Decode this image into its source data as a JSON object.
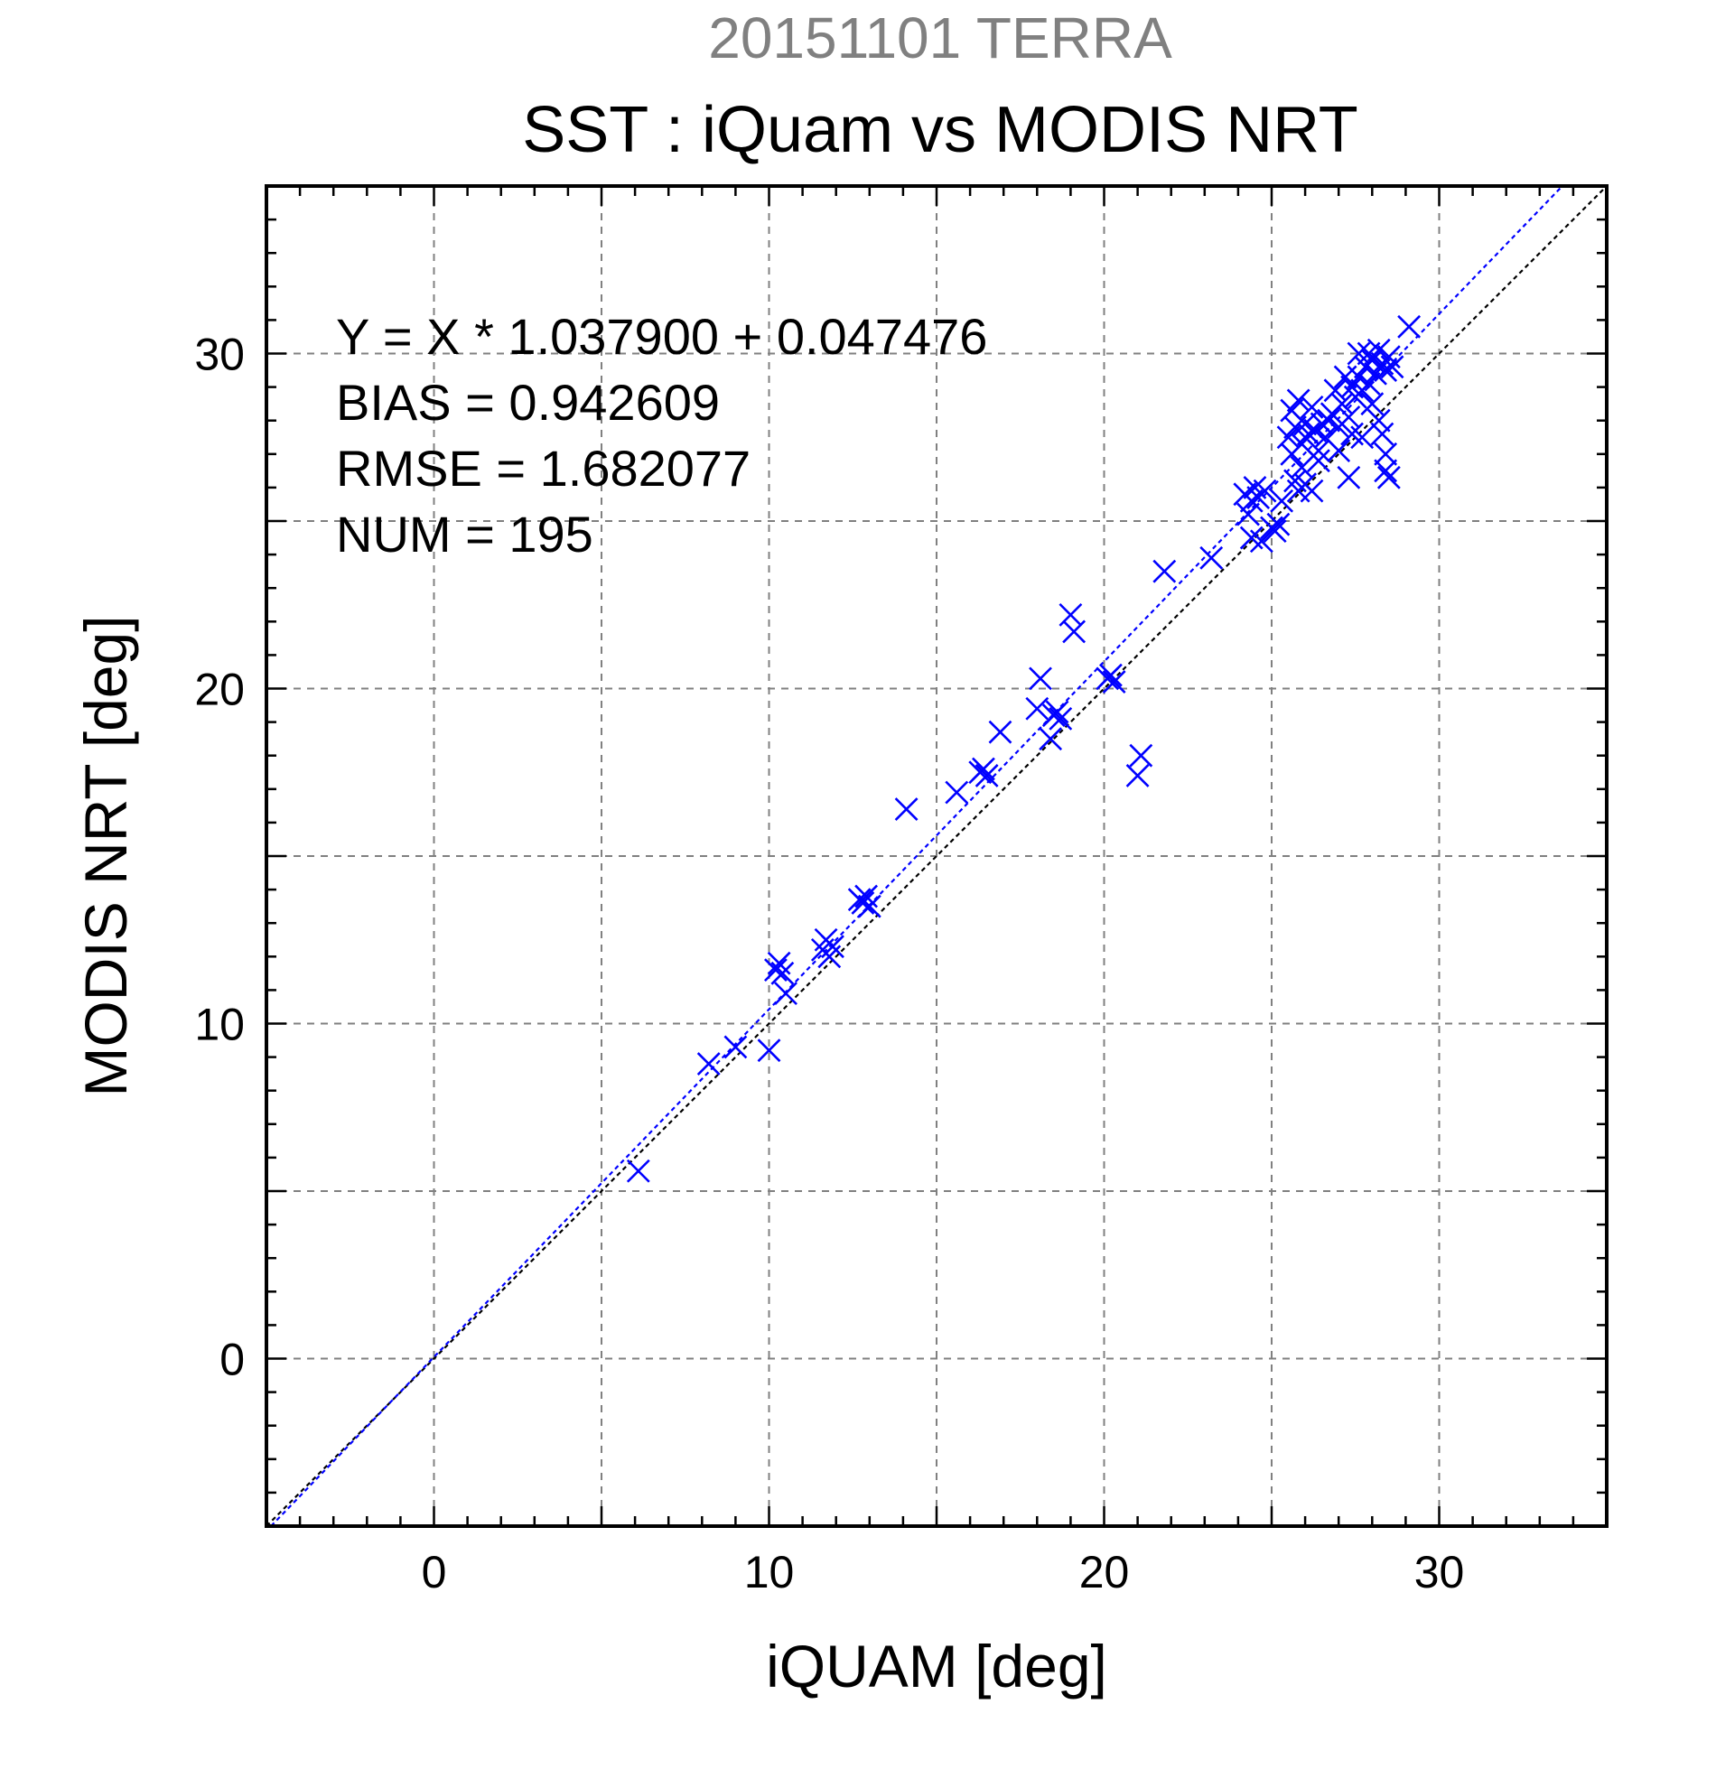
{
  "chart_data": {
    "type": "scatter",
    "suptitle": "20151101 TERRA",
    "title": "SST : iQuam vs MODIS NRT",
    "xlabel": "iQUAM [deg]",
    "ylabel": "MODIS NRT [deg]",
    "xlim": [
      -5,
      35
    ],
    "ylim": [
      -5,
      35
    ],
    "xticks": [
      0,
      10,
      20,
      30
    ],
    "yticks": [
      0,
      10,
      20,
      30
    ],
    "xtick_labels": [
      "0",
      "10",
      "20",
      "30"
    ],
    "ytick_labels": [
      "0",
      "10",
      "20",
      "30"
    ],
    "grid": true,
    "grid_step": 5,
    "minor_tick_step": 1,
    "marker": "x",
    "colors": {
      "points": "#0000ff",
      "fit_line": "#0000ff",
      "identity_line": "#000000"
    },
    "annotations": [
      "Y = X * 1.037900 + 0.047476",
      "BIAS = 0.942609",
      "RMSE = 1.682077",
      "NUM = 195"
    ],
    "fit": {
      "slope": 1.0379,
      "intercept": 0.047476
    },
    "identity_line": {
      "slope": 1,
      "intercept": 0
    },
    "points": [
      [
        6.1,
        5.6
      ],
      [
        8.2,
        8.8
      ],
      [
        9.0,
        9.3
      ],
      [
        10.0,
        9.2
      ],
      [
        10.2,
        11.6
      ],
      [
        10.3,
        11.8
      ],
      [
        10.4,
        11.5
      ],
      [
        10.5,
        10.9
      ],
      [
        11.6,
        12.2
      ],
      [
        11.7,
        12.5
      ],
      [
        11.8,
        12.0
      ],
      [
        11.9,
        12.3
      ],
      [
        12.7,
        13.7
      ],
      [
        12.8,
        13.6
      ],
      [
        12.9,
        13.8
      ],
      [
        13.0,
        13.5
      ],
      [
        14.1,
        16.4
      ],
      [
        15.6,
        16.9
      ],
      [
        16.3,
        17.5
      ],
      [
        16.4,
        17.6
      ],
      [
        16.5,
        17.4
      ],
      [
        16.9,
        18.7
      ],
      [
        18.0,
        19.4
      ],
      [
        18.1,
        20.3
      ],
      [
        18.4,
        18.5
      ],
      [
        18.5,
        19.2
      ],
      [
        18.6,
        19.3
      ],
      [
        18.7,
        19.1
      ],
      [
        19.0,
        22.2
      ],
      [
        19.1,
        21.7
      ],
      [
        20.1,
        20.3
      ],
      [
        20.2,
        20.4
      ],
      [
        20.3,
        20.2
      ],
      [
        21.0,
        17.4
      ],
      [
        21.1,
        18.0
      ],
      [
        21.8,
        23.5
      ],
      [
        23.2,
        23.9
      ],
      [
        24.2,
        25.8
      ],
      [
        24.3,
        25.2
      ],
      [
        24.4,
        24.5
      ],
      [
        24.4,
        25.6
      ],
      [
        24.5,
        26.0
      ],
      [
        24.6,
        25.7
      ],
      [
        24.7,
        24.4
      ],
      [
        24.8,
        25.9
      ],
      [
        25.0,
        24.8
      ],
      [
        25.1,
        24.7
      ],
      [
        25.2,
        24.9
      ],
      [
        25.3,
        25.6
      ],
      [
        25.5,
        27.5
      ],
      [
        25.6,
        28.3
      ],
      [
        25.6,
        27.0
      ],
      [
        25.7,
        27.8
      ],
      [
        25.7,
        26.2
      ],
      [
        25.8,
        28.6
      ],
      [
        25.8,
        25.9
      ],
      [
        25.9,
        27.3
      ],
      [
        25.9,
        26.6
      ],
      [
        26.0,
        27.9
      ],
      [
        26.0,
        26.1
      ],
      [
        26.1,
        27.6
      ],
      [
        26.2,
        28.4
      ],
      [
        26.2,
        25.9
      ],
      [
        26.3,
        27.7
      ],
      [
        26.4,
        27.1
      ],
      [
        26.4,
        26.8
      ],
      [
        26.5,
        27.9
      ],
      [
        26.6,
        27.5
      ],
      [
        26.7,
        28.0
      ],
      [
        26.8,
        28.2
      ],
      [
        26.9,
        28.9
      ],
      [
        27.0,
        27.8
      ],
      [
        27.0,
        27.1
      ],
      [
        27.1,
        28.5
      ],
      [
        27.2,
        29.3
      ],
      [
        27.3,
        28.1
      ],
      [
        27.3,
        26.3
      ],
      [
        27.4,
        29.0
      ],
      [
        27.4,
        27.6
      ],
      [
        27.5,
        28.7
      ],
      [
        27.6,
        30.0
      ],
      [
        27.6,
        29.3
      ],
      [
        27.7,
        28.9
      ],
      [
        27.7,
        27.5
      ],
      [
        27.8,
        29.6
      ],
      [
        27.9,
        30.0
      ],
      [
        27.9,
        29.1
      ],
      [
        28.0,
        28.5
      ],
      [
        28.0,
        29.8
      ],
      [
        28.1,
        29.4
      ],
      [
        28.2,
        30.1
      ],
      [
        28.2,
        28.0
      ],
      [
        28.3,
        29.7
      ],
      [
        28.3,
        27.6
      ],
      [
        28.4,
        29.5
      ],
      [
        28.4,
        27.0
      ],
      [
        28.4,
        26.5
      ],
      [
        28.5,
        29.9
      ],
      [
        28.5,
        26.3
      ],
      [
        28.6,
        29.6
      ],
      [
        29.1,
        30.8
      ]
    ]
  }
}
